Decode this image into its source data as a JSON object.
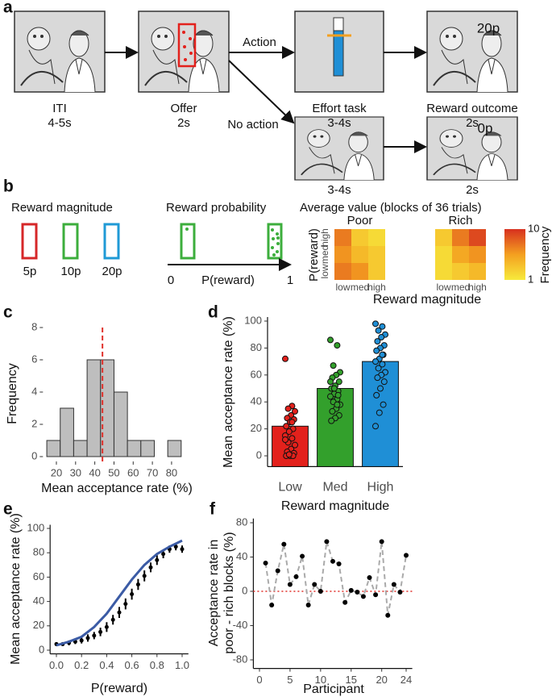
{
  "panel_labels": [
    "a",
    "b",
    "c",
    "d",
    "e",
    "f"
  ],
  "task": {
    "stages": [
      {
        "name": "ITI",
        "duration": "4-5s"
      },
      {
        "name": "Offer",
        "duration": "2s"
      },
      {
        "name": "Effort task",
        "duration": "3-4s"
      },
      {
        "name": "Reward outcome",
        "duration": "2s"
      }
    ],
    "branch_action": "Action",
    "branch_no_action": "No action",
    "no_action_durations": [
      "3-4s",
      "2s"
    ],
    "outcomes": [
      "20p",
      "0p"
    ]
  },
  "cues": {
    "magnitude_title": "Reward magnitude",
    "magnitudes": [
      {
        "label": "5p",
        "color": "#d62728"
      },
      {
        "label": "10p",
        "color": "#3cae3c"
      },
      {
        "label": "20p",
        "color": "#1f9ad6"
      }
    ],
    "probability_title": "Reward probability",
    "axis_start": "0",
    "axis_label": "P(reward)",
    "axis_end": "1"
  },
  "heatmaps": {
    "title": "Average value (blocks of 36 trials)",
    "ylabel": "P(reward)",
    "xlabel": "Reward magnitude",
    "levels": [
      "low",
      "med",
      "high"
    ],
    "panels": [
      {
        "name": "Poor",
        "values": [
          [
            7,
            6,
            3
          ],
          [
            6,
            4,
            3
          ],
          [
            7,
            3,
            2
          ]
        ]
      },
      {
        "name": "Rich",
        "values": [
          [
            2,
            3,
            4
          ],
          [
            2,
            5,
            6
          ],
          [
            3,
            7,
            9
          ]
        ]
      }
    ],
    "colorbar": {
      "label": "Frequency",
      "range": [
        1,
        10
      ],
      "ticks": [
        10,
        1
      ],
      "colors": [
        "#f7ea3c",
        "#f4a020",
        "#d7301f"
      ]
    }
  },
  "chart_data": [
    {
      "type": "histogram",
      "xlabel": "Mean acceptance rate (%)",
      "ylabel": "Frequency",
      "bins": [
        15,
        22,
        29,
        36,
        43,
        50,
        57,
        64,
        71,
        78,
        85
      ],
      "values": [
        1,
        3,
        1,
        6,
        6,
        4,
        1,
        1,
        0,
        1
      ],
      "color": "#bebebe",
      "reference_line": 44,
      "reference_color": "#e0312b",
      "xlim": [
        13,
        87
      ],
      "xticks": [
        20,
        30,
        40,
        50,
        60,
        70,
        80
      ],
      "ylim": [
        -0.3,
        8
      ],
      "yticks": [
        0,
        2,
        4,
        6,
        8
      ]
    },
    {
      "type": "bar",
      "xlabel": "Reward magnitude",
      "ylabel": "Mean acceptance rate (%)",
      "categories": [
        "Low",
        "Med",
        "High"
      ],
      "values": [
        22,
        50,
        70
      ],
      "colors": [
        "#e3211c",
        "#33a02c",
        "#1f8fd6"
      ],
      "points": [
        [
          72,
          37,
          35,
          33,
          30,
          28,
          27,
          25,
          22,
          20,
          18,
          15,
          13,
          10,
          8,
          5,
          3,
          2,
          0,
          0,
          0,
          1,
          12,
          25
        ],
        [
          86,
          82,
          67,
          62,
          60,
          58,
          55,
          52,
          50,
          48,
          46,
          44,
          42,
          40,
          38,
          35,
          33,
          30,
          28,
          26,
          45,
          50,
          55,
          38
        ],
        [
          98,
          96,
          93,
          90,
          88,
          85,
          82,
          80,
          78,
          75,
          72,
          70,
          68,
          65,
          62,
          60,
          58,
          55,
          50,
          45,
          38,
          32,
          22,
          75
        ]
      ],
      "ylim": [
        -8,
        103
      ],
      "yticks": [
        0,
        20,
        40,
        60,
        80,
        100
      ]
    },
    {
      "type": "line",
      "xlabel": "P(reward)",
      "ylabel": "Mean acceptance rate (%)",
      "points": {
        "x": [
          0,
          0.05,
          0.1,
          0.15,
          0.2,
          0.25,
          0.3,
          0.35,
          0.4,
          0.45,
          0.5,
          0.55,
          0.6,
          0.65,
          0.7,
          0.75,
          0.8,
          0.85,
          0.9,
          0.95,
          1
        ],
        "values": [
          5,
          5,
          6,
          7,
          8,
          10,
          12,
          15,
          19,
          25,
          31,
          38,
          46,
          54,
          61,
          68,
          74,
          79,
          83,
          85,
          83
        ],
        "errors": [
          1.5,
          1.5,
          2,
          2,
          2.5,
          3,
          3,
          3.5,
          4,
          4,
          4.5,
          4.5,
          4.5,
          4.5,
          4.5,
          4,
          4,
          3.5,
          3,
          3,
          3
        ],
        "color": "#000000"
      },
      "fit": {
        "x": [
          0,
          0.1,
          0.2,
          0.3,
          0.4,
          0.5,
          0.6,
          0.7,
          0.8,
          0.9,
          1
        ],
        "values": [
          4,
          7,
          11,
          19,
          30,
          44,
          58,
          70,
          79,
          85,
          90
        ],
        "color": "#3b5ba5"
      },
      "xlim": [
        -0.05,
        1.05
      ],
      "xticks": [
        {
          "value": 0,
          "label": "0.0"
        },
        0.2,
        0.4,
        0.6,
        0.8,
        {
          "value": 1,
          "label": "1.0"
        }
      ],
      "ylim": [
        -3,
        103
      ],
      "yticks": [
        0,
        20,
        40,
        60,
        80,
        100
      ]
    },
    {
      "type": "scatter",
      "xlabel": "Participant",
      "ylabel": [
        "Acceptance rate in",
        "poor - rich blocks (%)"
      ],
      "x": [
        1,
        2,
        3,
        4,
        5,
        6,
        7,
        8,
        9,
        10,
        11,
        12,
        13,
        14,
        15,
        16,
        17,
        18,
        19,
        20,
        21,
        22,
        23,
        24
      ],
      "values": [
        33,
        -16,
        24,
        55,
        8,
        17,
        41,
        -16,
        8,
        0,
        58,
        35,
        32,
        -13,
        1,
        -1,
        -6,
        16,
        -4,
        58,
        -28,
        8,
        -1,
        42
      ],
      "color": "#000000",
      "line_color": "#aaaaaa",
      "reference_line": 0,
      "reference_color": "#e0312b",
      "xlim": [
        -1,
        25
      ],
      "xticks": [
        0,
        5,
        10,
        15,
        20,
        24
      ],
      "ylim": [
        -90,
        85
      ],
      "yticks": [
        -80,
        -40,
        0,
        40,
        80
      ]
    }
  ]
}
